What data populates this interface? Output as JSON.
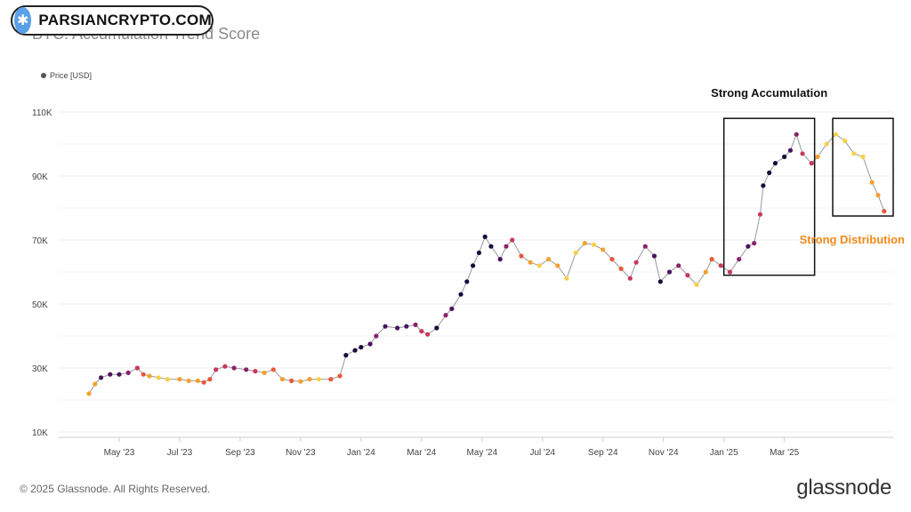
{
  "watermark": {
    "text": "PARSIANCRYPTO.COM"
  },
  "chart_data": {
    "type": "scatter",
    "title": "BTC: Accumulation Trend Score",
    "legend": {
      "entries": [
        "Price [USD]"
      ],
      "placement": "top-left"
    },
    "yticks": [
      "10K",
      "30K",
      "50K",
      "70K",
      "90K",
      "110K"
    ],
    "ylim": [
      10000,
      110000
    ],
    "xticks": [
      "May '23",
      "Jul '23",
      "Sep '23",
      "Nov '23",
      "Jan '24",
      "Mar '24",
      "May '24",
      "Jul '24",
      "Sep '24",
      "Nov '24",
      "Jan '25",
      "Mar '25"
    ],
    "x_range_months": [
      0,
      24.4
    ],
    "grid": "horizontal",
    "color_scale": [
      "#1a0a3c",
      "#4a1460",
      "#8a226a",
      "#c8385a",
      "#e85a3a",
      "#f4a030",
      "#f8d048"
    ],
    "series": [
      {
        "points": [
          [
            0.0,
            22000,
            5
          ],
          [
            0.2,
            25000,
            5
          ],
          [
            0.4,
            27000,
            1
          ],
          [
            0.7,
            28000,
            1
          ],
          [
            1.0,
            28000,
            1
          ],
          [
            1.3,
            28500,
            2
          ],
          [
            1.6,
            30000,
            3
          ],
          [
            1.8,
            28000,
            4
          ],
          [
            2.0,
            27500,
            5
          ],
          [
            2.3,
            27000,
            6
          ],
          [
            2.6,
            26500,
            6
          ],
          [
            3.0,
            26500,
            5
          ],
          [
            3.3,
            26000,
            5
          ],
          [
            3.6,
            26000,
            5
          ],
          [
            3.8,
            25500,
            4
          ],
          [
            4.0,
            26500,
            4
          ],
          [
            4.2,
            29500,
            3
          ],
          [
            4.5,
            30500,
            3
          ],
          [
            4.8,
            30000,
            2
          ],
          [
            5.2,
            29500,
            2
          ],
          [
            5.5,
            29000,
            3
          ],
          [
            5.8,
            28500,
            5
          ],
          [
            6.1,
            29500,
            4
          ],
          [
            6.4,
            26500,
            5
          ],
          [
            6.7,
            26000,
            4
          ],
          [
            7.0,
            25800,
            5
          ],
          [
            7.3,
            26500,
            5
          ],
          [
            7.6,
            26500,
            6
          ],
          [
            8.0,
            26500,
            4
          ],
          [
            8.3,
            27500,
            4
          ],
          [
            8.5,
            34000,
            0
          ],
          [
            8.8,
            35500,
            0
          ],
          [
            9.0,
            36500,
            0
          ],
          [
            9.3,
            37500,
            1
          ],
          [
            9.5,
            40000,
            2
          ],
          [
            9.8,
            43000,
            1
          ],
          [
            10.2,
            42500,
            1
          ],
          [
            10.5,
            43000,
            1
          ],
          [
            10.8,
            43500,
            2
          ],
          [
            11.0,
            41500,
            3
          ],
          [
            11.2,
            40500,
            3
          ],
          [
            11.5,
            42500,
            0
          ],
          [
            11.8,
            46500,
            2
          ],
          [
            12.0,
            48500,
            1
          ],
          [
            12.3,
            53000,
            0
          ],
          [
            12.5,
            57000,
            0
          ],
          [
            12.7,
            62000,
            0
          ],
          [
            12.9,
            66000,
            0
          ],
          [
            13.1,
            71000,
            0
          ],
          [
            13.3,
            68000,
            0
          ],
          [
            13.6,
            64000,
            1
          ],
          [
            13.8,
            68000,
            2
          ],
          [
            14.0,
            70000,
            3
          ],
          [
            14.3,
            65000,
            4
          ],
          [
            14.6,
            63000,
            5
          ],
          [
            14.9,
            62000,
            6
          ],
          [
            15.2,
            64000,
            5
          ],
          [
            15.5,
            62000,
            5
          ],
          [
            15.8,
            58000,
            6
          ],
          [
            16.1,
            66000,
            6
          ],
          [
            16.4,
            69000,
            5
          ],
          [
            16.7,
            68500,
            6
          ],
          [
            17.0,
            67000,
            5
          ],
          [
            17.3,
            64000,
            4
          ],
          [
            17.6,
            61000,
            4
          ],
          [
            17.9,
            58000,
            3
          ],
          [
            18.1,
            63000,
            3
          ],
          [
            18.4,
            68000,
            2
          ],
          [
            18.7,
            65000,
            1
          ],
          [
            18.9,
            57000,
            0
          ],
          [
            19.2,
            60000,
            1
          ],
          [
            19.5,
            62000,
            2
          ],
          [
            19.8,
            59000,
            3
          ],
          [
            20.1,
            56000,
            6
          ],
          [
            20.4,
            60000,
            5
          ],
          [
            20.6,
            64000,
            4
          ],
          [
            20.9,
            62000,
            3
          ],
          [
            21.2,
            60000,
            3
          ],
          [
            21.5,
            64000,
            2
          ],
          [
            21.8,
            68000,
            1
          ],
          [
            22.0,
            69000,
            2
          ],
          [
            22.2,
            78000,
            3
          ],
          [
            22.3,
            87000,
            0
          ],
          [
            22.5,
            91000,
            0
          ],
          [
            22.7,
            94000,
            0
          ],
          [
            23.0,
            96000,
            0
          ],
          [
            23.2,
            98000,
            1
          ],
          [
            23.4,
            103000,
            2
          ],
          [
            23.6,
            97000,
            3
          ],
          [
            23.9,
            94000,
            3
          ],
          [
            24.1,
            96000,
            5
          ],
          [
            24.4,
            100000,
            6
          ],
          [
            24.7,
            103000,
            6
          ],
          [
            25.0,
            101000,
            6
          ],
          [
            25.3,
            97000,
            6
          ],
          [
            25.6,
            96000,
            6
          ],
          [
            25.9,
            88000,
            5
          ],
          [
            26.1,
            84000,
            5
          ],
          [
            26.3,
            79000,
            4
          ]
        ]
      }
    ],
    "annotations": [
      {
        "text": "Strong Accumulation"
      },
      {
        "text": "Strong Distribution"
      }
    ]
  },
  "footer": {
    "copyright": "© 2025 Glassnode. All Rights Reserved.",
    "brand": "glassnode"
  }
}
